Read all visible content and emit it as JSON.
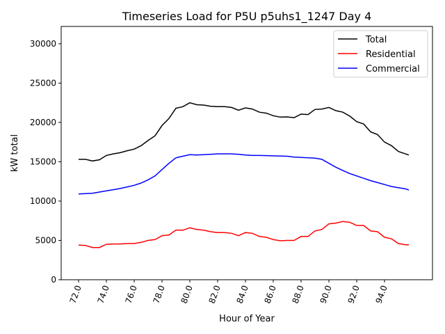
{
  "chart_data": {
    "type": "line",
    "title": "Timeseries Load for P5U p5uhs1_1247  Day 4",
    "xlabel": "Hour of Year",
    "ylabel": "kW total",
    "xlim": [
      70.75,
      97.45
    ],
    "ylim": [
      0,
      32200
    ],
    "xticks": [
      72,
      74,
      76,
      78,
      80,
      82,
      84,
      86,
      88,
      90,
      92,
      94
    ],
    "xtick_labels": [
      "72.0",
      "74.0",
      "76.0",
      "78.0",
      "80.0",
      "82.0",
      "84.0",
      "86.0",
      "88.0",
      "90.0",
      "92.0",
      "94.0"
    ],
    "yticks": [
      0,
      5000,
      10000,
      15000,
      20000,
      25000,
      30000
    ],
    "ytick_labels": [
      "0",
      "5000",
      "10000",
      "15000",
      "20000",
      "25000",
      "30000"
    ],
    "legend_position": "top-right",
    "grid": false,
    "x": [
      72,
      72.5,
      73,
      73.5,
      74,
      74.5,
      75,
      75.5,
      76,
      76.5,
      77,
      77.5,
      78,
      78.5,
      79,
      79.5,
      80,
      80.5,
      81,
      81.5,
      82,
      82.5,
      83,
      83.5,
      84,
      84.5,
      85,
      85.5,
      86,
      86.5,
      87,
      87.5,
      88,
      88.5,
      89,
      89.5,
      90,
      90.5,
      91,
      91.5,
      92,
      92.5,
      93,
      93.5,
      94,
      94.5,
      95,
      95.5,
      95.75
    ],
    "series": [
      {
        "name": "Total",
        "color": "#000000",
        "values": [
          15300,
          15300,
          15100,
          15250,
          15800,
          16000,
          16150,
          16400,
          16600,
          17050,
          17700,
          18300,
          19600,
          20500,
          21800,
          22000,
          22500,
          22250,
          22200,
          22050,
          22000,
          22000,
          21900,
          21550,
          21850,
          21700,
          21300,
          21180,
          20850,
          20670,
          20700,
          20600,
          21050,
          21000,
          21650,
          21700,
          21900,
          21500,
          21300,
          20800,
          20100,
          19800,
          18800,
          18450,
          17500,
          17050,
          16300,
          16000,
          15850
        ]
      },
      {
        "name": "Residential",
        "color": "#ff0000",
        "values": [
          4400,
          4350,
          4100,
          4100,
          4500,
          4550,
          4550,
          4600,
          4600,
          4750,
          5000,
          5100,
          5600,
          5700,
          6300,
          6300,
          6600,
          6400,
          6300,
          6100,
          6000,
          6000,
          5900,
          5600,
          6000,
          5900,
          5500,
          5400,
          5100,
          4950,
          5000,
          5000,
          5500,
          5500,
          6200,
          6400,
          7100,
          7200,
          7400,
          7300,
          6900,
          6900,
          6200,
          6100,
          5400,
          5200,
          4600,
          4450,
          4450
        ]
      },
      {
        "name": "Commercial",
        "color": "#0000ff",
        "values": [
          10900,
          10950,
          11000,
          11150,
          11300,
          11450,
          11600,
          11800,
          12000,
          12300,
          12700,
          13200,
          14000,
          14800,
          15500,
          15700,
          15900,
          15850,
          15900,
          15950,
          16000,
          16000,
          16000,
          15950,
          15850,
          15800,
          15800,
          15780,
          15750,
          15720,
          15700,
          15600,
          15550,
          15500,
          15450,
          15300,
          14800,
          14300,
          13900,
          13500,
          13200,
          12900,
          12600,
          12350,
          12100,
          11850,
          11700,
          11550,
          11400
        ]
      }
    ]
  }
}
